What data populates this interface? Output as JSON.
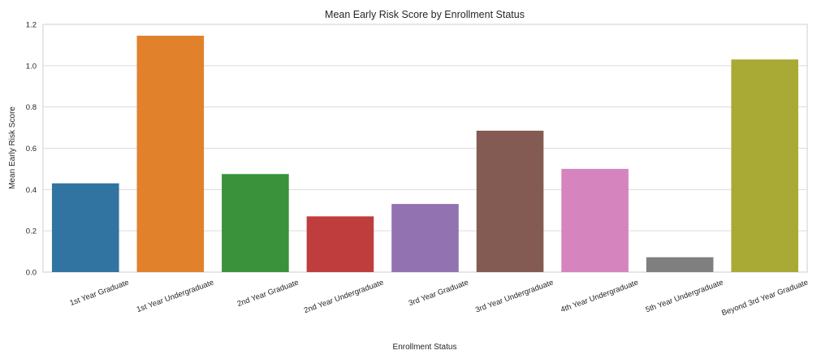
{
  "chart_data": {
    "type": "bar",
    "title": "Mean Early Risk Score by Enrollment Status",
    "xlabel": "Enrollment Status",
    "ylabel": "Mean Early Risk Score",
    "ylim": [
      0,
      1.2
    ],
    "yticks": [
      "0.0",
      "0.2",
      "0.4",
      "0.6",
      "0.8",
      "1.0",
      "1.2"
    ],
    "grid": true,
    "categories": [
      "1st Year Graduate",
      "1st Year Undergraduate",
      "2nd Year Graduate",
      "2nd Year Undergraduate",
      "3rd Year Graduate",
      "3rd Year Undergraduate",
      "4th Year Undergraduate",
      "5th Year Undergraduate",
      "Beyond 3rd Year Graduate"
    ],
    "values": [
      0.43,
      1.145,
      0.475,
      0.27,
      0.33,
      0.685,
      0.5,
      0.072,
      1.03
    ],
    "colors": [
      "#3274a1",
      "#e1812c",
      "#3a923a",
      "#c03d3e",
      "#9372b2",
      "#845b53",
      "#d684bd",
      "#7f7f7f",
      "#a9aa35"
    ]
  }
}
